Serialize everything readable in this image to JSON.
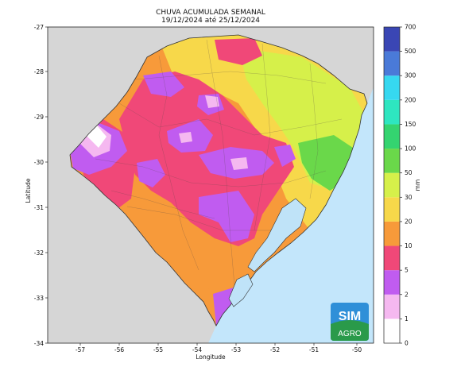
{
  "title_line1": "CHUVA ACUMULADA SEMANAL",
  "title_line2": "19/12/2024 até 25/12/2024",
  "x_axis": {
    "label": "Longitude",
    "ticks": [
      "-57",
      "-56",
      "-55",
      "-54",
      "-53",
      "-52",
      "-51",
      "-50"
    ]
  },
  "y_axis": {
    "label": "Latitude",
    "ticks": [
      "-27",
      "-28",
      "-29",
      "-30",
      "-31",
      "-32",
      "-33",
      "-34"
    ]
  },
  "colorbar": {
    "unit": "mm",
    "levels": [
      "0",
      "1",
      "2",
      "5",
      "10",
      "20",
      "30",
      "50",
      "100",
      "150",
      "200",
      "300",
      "500",
      "700"
    ],
    "colors": [
      "#ffffff",
      "#f5b8f0",
      "#c05cf0",
      "#f04878",
      "#f79a3a",
      "#f7d84a",
      "#d6f04a",
      "#6ad84a",
      "#34d470",
      "#2ee6c0",
      "#36d8f0",
      "#4a7ad8",
      "#3a46b4"
    ]
  },
  "logo": {
    "line1": "SIM",
    "line2": "AGRO"
  },
  "colors": {
    "neighbor_land": "#d6d6d6",
    "ocean": "#c3e6fb",
    "lagoon": "#bfe3f8"
  }
}
